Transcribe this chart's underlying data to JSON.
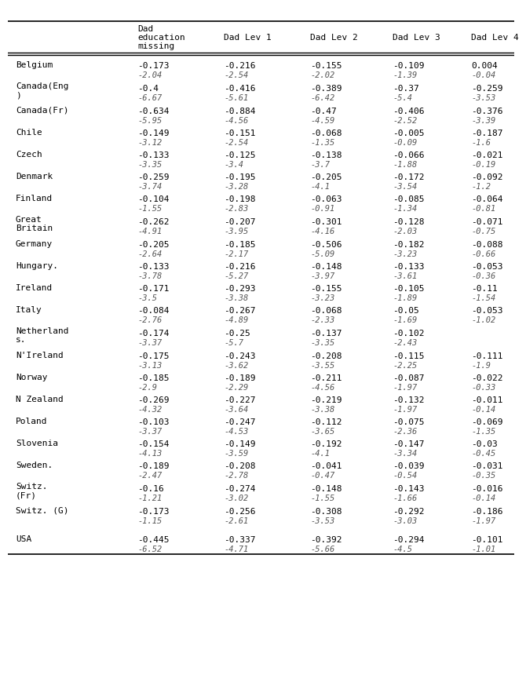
{
  "columns": [
    "Dad education\nmissing",
    "Dad Lev 1",
    "Dad Lev 2",
    "Dad Lev 3",
    "Dad Lev 4"
  ],
  "rows": [
    {
      "country": "Belgium",
      "line1": [
        "-0.173",
        "-0.216",
        "-0.155",
        "-0.109",
        "0.004"
      ],
      "line2": [
        "-2.04",
        "-2.54",
        "-2.02",
        "-1.39",
        "-0.04"
      ]
    },
    {
      "country": "Canada(Eng\n)",
      "line1": [
        "-0.4",
        "-0.416",
        "-0.389",
        "-0.37",
        "-0.259"
      ],
      "line2": [
        "-6.67",
        "-5.61",
        "-6.42",
        "-5.4",
        "-3.53"
      ]
    },
    {
      "country": "Canada(Fr)",
      "line1": [
        "-0.634",
        "-0.884",
        "-0.47",
        "-0.406",
        "-0.376"
      ],
      "line2": [
        "-5.95",
        "-4.56",
        "-4.59",
        "-2.52",
        "-3.39"
      ]
    },
    {
      "country": "Chile",
      "line1": [
        "-0.149",
        "-0.151",
        "-0.068",
        "-0.005",
        "-0.187"
      ],
      "line2": [
        "-3.12",
        "-2.54",
        "-1.35",
        "-0.09",
        "-1.6"
      ]
    },
    {
      "country": "Czech",
      "line1": [
        "-0.133",
        "-0.125",
        "-0.138",
        "-0.066",
        "-0.021"
      ],
      "line2": [
        "-3.35",
        "-3.4",
        "-3.7",
        "-1.88",
        "-0.19"
      ]
    },
    {
      "country": "Denmark",
      "line1": [
        "-0.259",
        "-0.195",
        "-0.205",
        "-0.172",
        "-0.092"
      ],
      "line2": [
        "-3.74",
        "-3.28",
        "-4.1",
        "-3.54",
        "-1.2"
      ]
    },
    {
      "country": "Finland",
      "line1": [
        "-0.104",
        "-0.198",
        "-0.063",
        "-0.085",
        "-0.064"
      ],
      "line2": [
        "-1.55",
        "-2.83",
        "-0.91",
        "-1.34",
        "-0.81"
      ]
    },
    {
      "country": "Great\nBritain",
      "line1": [
        "-0.262",
        "-0.207",
        "-0.301",
        "-0.128",
        "-0.071"
      ],
      "line2": [
        "-4.91",
        "-3.95",
        "-4.16",
        "-2.03",
        "-0.75"
      ]
    },
    {
      "country": "Germany",
      "line1": [
        "-0.205",
        "-0.185",
        "-0.506",
        "-0.182",
        "-0.088"
      ],
      "line2": [
        "-2.64",
        "-2.17",
        "-5.09",
        "-3.23",
        "-0.66"
      ]
    },
    {
      "country": "Hungary.",
      "line1": [
        "-0.133",
        "-0.216",
        "-0.148",
        "-0.133",
        "-0.053"
      ],
      "line2": [
        "-3.78",
        "-5.27",
        "-3.97",
        "-3.61",
        "-0.36"
      ]
    },
    {
      "country": "Ireland",
      "line1": [
        "-0.171",
        "-0.293",
        "-0.155",
        "-0.105",
        "-0.11"
      ],
      "line2": [
        "-3.5",
        "-3.38",
        "-3.23",
        "-1.89",
        "-1.54"
      ]
    },
    {
      "country": "Italy",
      "line1": [
        "-0.084",
        "-0.267",
        "-0.068",
        "-0.05",
        "-0.053"
      ],
      "line2": [
        "-2.76",
        "-4.89",
        "-2.33",
        "-1.69",
        "-1.02"
      ]
    },
    {
      "country": "Netherland\ns.",
      "line1": [
        "-0.174",
        "-0.25",
        "-0.137",
        "-0.102",
        ""
      ],
      "line2": [
        "-3.37",
        "-5.7",
        "-3.35",
        "-2.43",
        ""
      ]
    },
    {
      "country": "N'Ireland",
      "line1": [
        "-0.175",
        "-0.243",
        "-0.208",
        "-0.115",
        "-0.111"
      ],
      "line2": [
        "-3.13",
        "-3.62",
        "-3.55",
        "-2.25",
        "-1.9"
      ]
    },
    {
      "country": "Norway",
      "line1": [
        "-0.185",
        "-0.189",
        "-0.211",
        "-0.087",
        "-0.022"
      ],
      "line2": [
        "-2.9",
        "-2.29",
        "-4.56",
        "-1.97",
        "-0.33"
      ]
    },
    {
      "country": "N Zealand",
      "line1": [
        "-0.269",
        "-0.227",
        "-0.219",
        "-0.132",
        "-0.011"
      ],
      "line2": [
        "-4.32",
        "-3.64",
        "-3.38",
        "-1.97",
        "-0.14"
      ]
    },
    {
      "country": "Poland",
      "line1": [
        "-0.103",
        "-0.247",
        "-0.112",
        "-0.075",
        "-0.069"
      ],
      "line2": [
        "-3.37",
        "-4.53",
        "-3.65",
        "-2.36",
        "-1.35"
      ]
    },
    {
      "country": "Slovenia",
      "line1": [
        "-0.154",
        "-0.149",
        "-0.192",
        "-0.147",
        "-0.03"
      ],
      "line2": [
        "-4.13",
        "-3.59",
        "-4.1",
        "-3.34",
        "-0.45"
      ]
    },
    {
      "country": "Sweden.",
      "line1": [
        "-0.189",
        "-0.208",
        "-0.041",
        "-0.039",
        "-0.031"
      ],
      "line2": [
        "-2.47",
        "-2.78",
        "-0.47",
        "-0.54",
        "-0.35"
      ]
    },
    {
      "country": "Switz.\n(Fr)",
      "line1": [
        "-0.16",
        "-0.274",
        "-0.148",
        "-0.143",
        "-0.016"
      ],
      "line2": [
        "-1.21",
        "-3.02",
        "-1.55",
        "-1.66",
        "-0.14"
      ]
    },
    {
      "country": "Switz. (G)",
      "line1": [
        "-0.173",
        "-0.256",
        "-0.308",
        "-0.292",
        "-0.186"
      ],
      "line2": [
        "-1.15",
        "-2.61",
        "-3.53",
        "-3.03",
        "-1.97"
      ]
    },
    {
      "country": "USA",
      "line1": [
        "-0.445",
        "-0.337",
        "-0.392",
        "-0.294",
        "-0.101"
      ],
      "line2": [
        "-6.52",
        "-4.71",
        "-5.66",
        "-4.5",
        "-1.01"
      ]
    }
  ],
  "bg_color": "#ffffff",
  "text_color": "#000000",
  "italic_color": "#555555",
  "font_size": 8.0,
  "italic_font_size": 7.5
}
